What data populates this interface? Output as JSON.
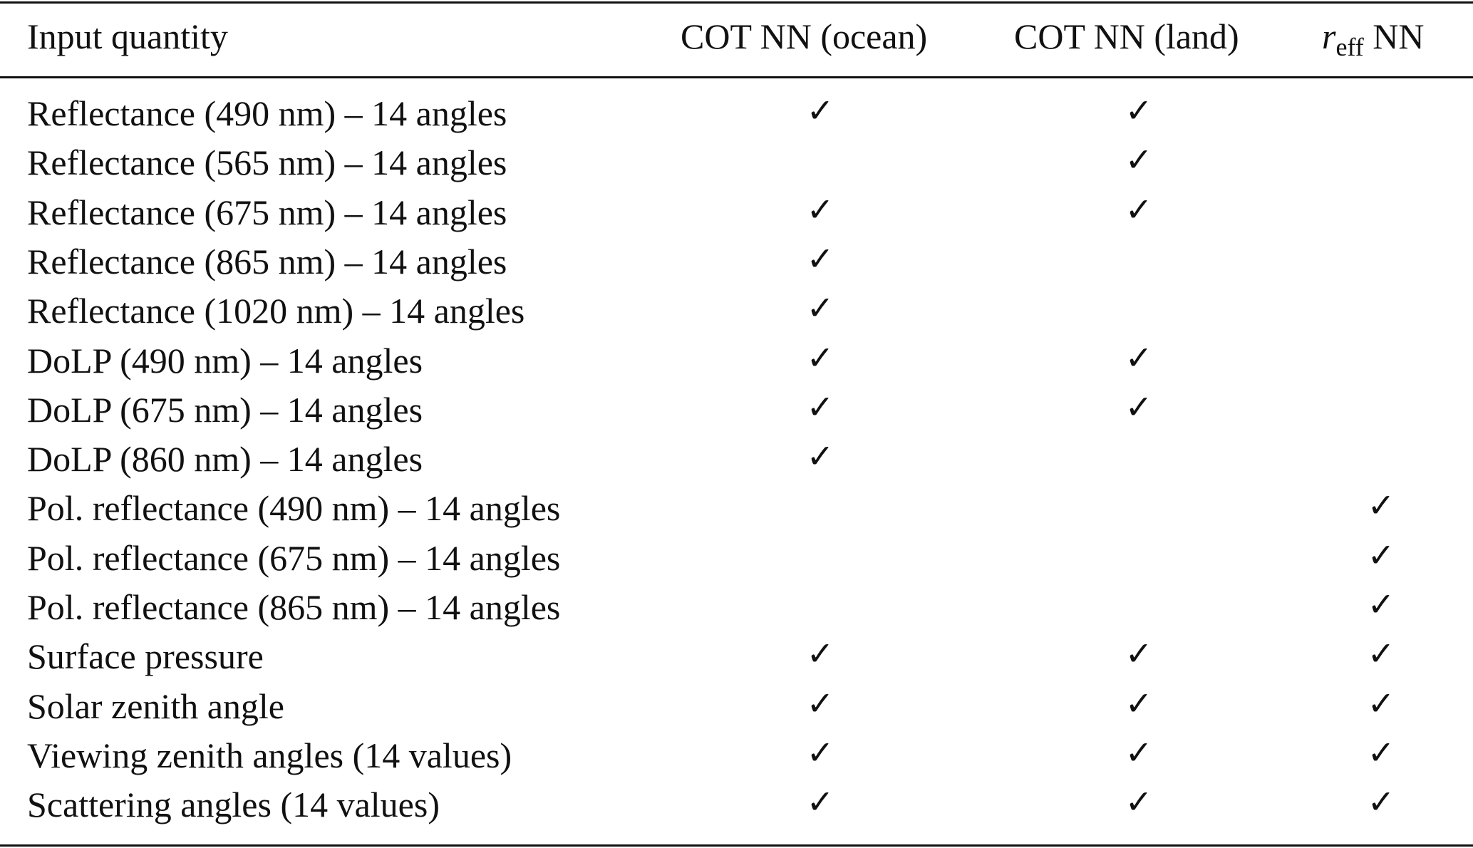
{
  "table": {
    "headers": {
      "input": "Input quantity",
      "ocean": "COT NN (ocean)",
      "land": "COT NN (land)",
      "reff_symbol": "r",
      "reff_subscript": "eff",
      "reff_suffix": " NN"
    },
    "check_glyph": "✓",
    "rows": [
      {
        "label": "Reflectance (490 nm) – 14 angles",
        "ocean": "✓",
        "land": "✓",
        "reff": ""
      },
      {
        "label": "Reflectance (565 nm) – 14 angles",
        "ocean": "",
        "land": "✓",
        "reff": ""
      },
      {
        "label": "Reflectance (675 nm) – 14 angles",
        "ocean": "✓",
        "land": "✓",
        "reff": ""
      },
      {
        "label": "Reflectance (865 nm) – 14 angles",
        "ocean": "✓",
        "land": "",
        "reff": ""
      },
      {
        "label": "Reflectance (1020 nm) – 14 angles",
        "ocean": "✓",
        "land": "",
        "reff": ""
      },
      {
        "label": "DoLP (490 nm) – 14 angles",
        "ocean": "✓",
        "land": "✓",
        "reff": ""
      },
      {
        "label": "DoLP (675 nm) – 14 angles",
        "ocean": "✓",
        "land": "✓",
        "reff": ""
      },
      {
        "label": "DoLP (860 nm) – 14 angles",
        "ocean": "✓",
        "land": "",
        "reff": ""
      },
      {
        "label": "Pol. reflectance (490 nm) – 14 angles",
        "ocean": "",
        "land": "",
        "reff": "✓"
      },
      {
        "label": "Pol. reflectance (675 nm) – 14 angles",
        "ocean": "",
        "land": "",
        "reff": "✓"
      },
      {
        "label": "Pol. reflectance (865 nm) – 14 angles",
        "ocean": "",
        "land": "",
        "reff": "✓"
      },
      {
        "label": "Surface pressure",
        "ocean": "✓",
        "land": "✓",
        "reff": "✓"
      },
      {
        "label": "Solar zenith angle",
        "ocean": "✓",
        "land": "✓",
        "reff": "✓"
      },
      {
        "label": "Viewing zenith angles (14 values)",
        "ocean": "✓",
        "land": "✓",
        "reff": "✓"
      },
      {
        "label": "Scattering angles (14 values)",
        "ocean": "✓",
        "land": "✓",
        "reff": "✓"
      }
    ]
  }
}
